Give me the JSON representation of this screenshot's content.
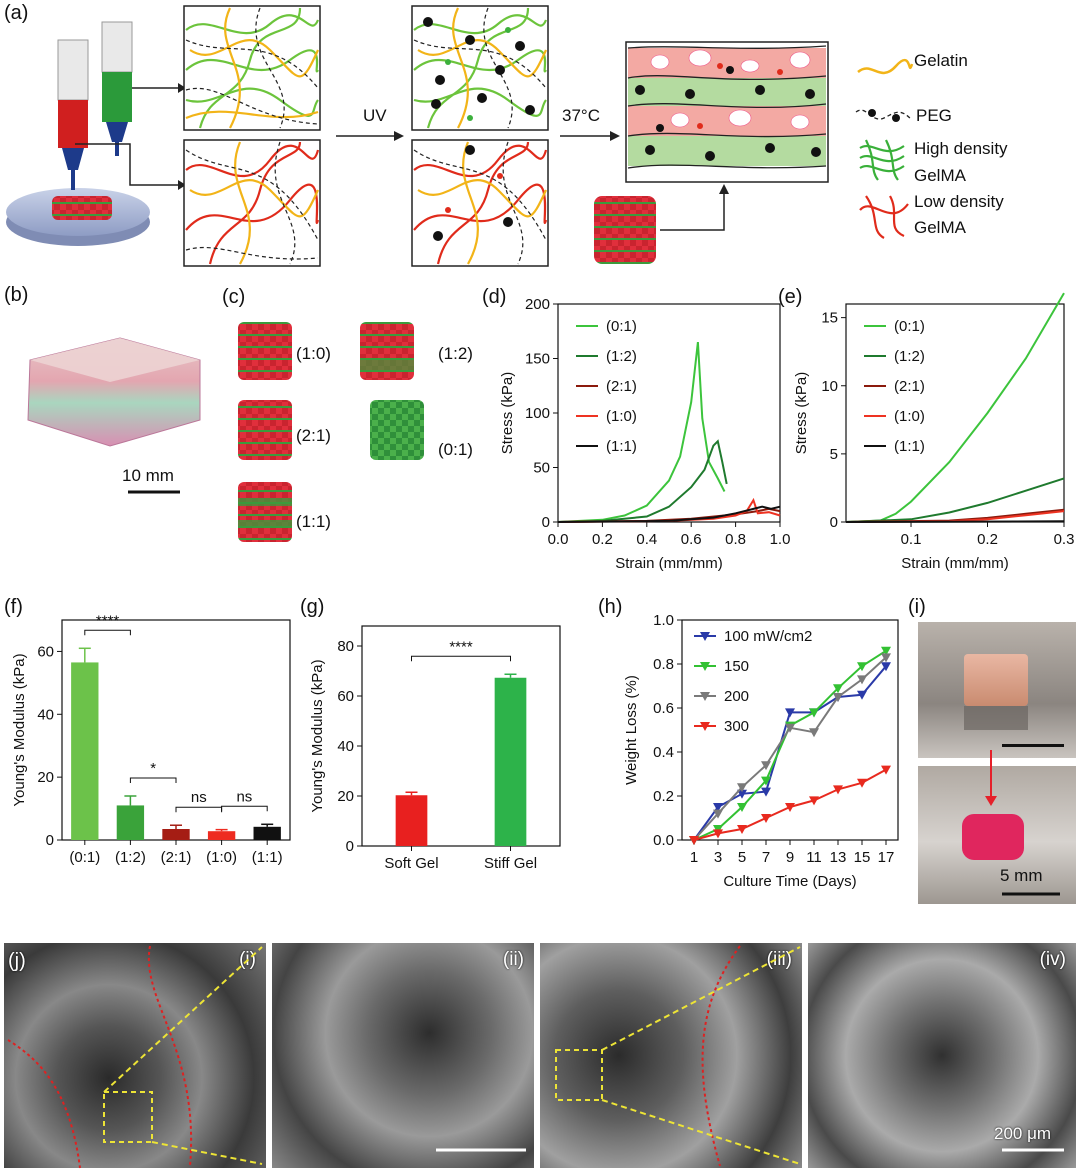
{
  "panels": {
    "a": "(a)",
    "b": "(b)",
    "c": "(c)",
    "d": "(d)",
    "e": "(e)",
    "f": "(f)",
    "g": "(g)",
    "h": "(h)",
    "i": "(i)",
    "j": "(j)"
  },
  "panel_a": {
    "step_uv": "UV",
    "step_temp": "37°C",
    "legend": {
      "gelatin": "Gelatin",
      "peg": "PEG",
      "high_1": "High density",
      "high_2": "GelMA",
      "low_1": "Low density",
      "low_2": "GelMA"
    },
    "colors": {
      "gelatin": "#f2b418",
      "high": "#3ab03a",
      "low": "#e02b1b",
      "peg": "#111111"
    }
  },
  "panel_b": {
    "scale": "10 mm"
  },
  "panel_c": {
    "labels": [
      "(1:0)",
      "(1:2)",
      "(2:1)",
      "(0:1)",
      "(1:1)"
    ]
  },
  "panel_i": {
    "scale": "5 mm"
  },
  "panel_j": {
    "tiles": [
      "(i)",
      "(ii)",
      "(iii)",
      "(iv)"
    ],
    "scale": "200 μm"
  },
  "chart_data": [
    {
      "id": "d",
      "type": "line",
      "xlabel": "Strain (mm/mm)",
      "ylabel": "Stress (kPa)",
      "xlim": [
        0,
        1.0
      ],
      "ylim": [
        0,
        200
      ],
      "xticks": [
        "0.0",
        "0.2",
        "0.4",
        "0.6",
        "0.8",
        "1.0"
      ],
      "yticks": [
        "0",
        "50",
        "100",
        "150",
        "200"
      ],
      "legend_position": "top-left",
      "series": [
        {
          "name": "(0:1)",
          "color": "#3cc43c",
          "points": [
            [
              0,
              0
            ],
            [
              0.2,
              2
            ],
            [
              0.3,
              6
            ],
            [
              0.4,
              15
            ],
            [
              0.5,
              38
            ],
            [
              0.55,
              60
            ],
            [
              0.6,
              110
            ],
            [
              0.63,
              165
            ],
            [
              0.65,
              95
            ],
            [
              0.68,
              55
            ],
            [
              0.72,
              40
            ],
            [
              0.75,
              28
            ]
          ]
        },
        {
          "name": "(1:2)",
          "color": "#1f7a2e",
          "points": [
            [
              0,
              0
            ],
            [
              0.2,
              1
            ],
            [
              0.4,
              5
            ],
            [
              0.5,
              14
            ],
            [
              0.6,
              32
            ],
            [
              0.66,
              48
            ],
            [
              0.7,
              70
            ],
            [
              0.72,
              74
            ],
            [
              0.74,
              55
            ],
            [
              0.76,
              35
            ]
          ]
        },
        {
          "name": "(2:1)",
          "color": "#8b1a0d",
          "points": [
            [
              0,
              0
            ],
            [
              0.4,
              1
            ],
            [
              0.6,
              3
            ],
            [
              0.8,
              7
            ],
            [
              0.9,
              10
            ],
            [
              0.95,
              12
            ],
            [
              1.0,
              10
            ]
          ]
        },
        {
          "name": "(1:0)",
          "color": "#ee3322",
          "points": [
            [
              0,
              0
            ],
            [
              0.5,
              1
            ],
            [
              0.7,
              3
            ],
            [
              0.8,
              6
            ],
            [
              0.85,
              10
            ],
            [
              0.88,
              20
            ],
            [
              0.9,
              8
            ],
            [
              0.95,
              9
            ],
            [
              1.0,
              6
            ]
          ]
        },
        {
          "name": "(1:1)",
          "color": "#111111",
          "points": [
            [
              0,
              0
            ],
            [
              0.5,
              1
            ],
            [
              0.7,
              4
            ],
            [
              0.8,
              8
            ],
            [
              0.88,
              12
            ],
            [
              0.92,
              14
            ],
            [
              0.96,
              12
            ],
            [
              1.0,
              14
            ]
          ]
        }
      ]
    },
    {
      "id": "e",
      "type": "line",
      "xlabel": "Strain (mm/mm)",
      "ylabel": "Stress (kPa)",
      "xlim": [
        0.015,
        0.3
      ],
      "ylim": [
        0,
        16
      ],
      "xticks": [
        "0.1",
        "0.2",
        "0.3"
      ],
      "xtick_values": [
        0.1,
        0.2,
        0.3
      ],
      "yticks": [
        "0",
        "5",
        "10",
        "15"
      ],
      "ytick_values": [
        0,
        5,
        10,
        15
      ],
      "legend_position": "top-left",
      "series": [
        {
          "name": "(0:1)",
          "color": "#3cc43c",
          "points": [
            [
              0.015,
              0
            ],
            [
              0.06,
              0.1
            ],
            [
              0.08,
              0.6
            ],
            [
              0.1,
              1.5
            ],
            [
              0.15,
              4.4
            ],
            [
              0.2,
              8
            ],
            [
              0.25,
              12
            ],
            [
              0.3,
              16.8
            ]
          ]
        },
        {
          "name": "(1:2)",
          "color": "#1f7a2e",
          "points": [
            [
              0.015,
              0
            ],
            [
              0.1,
              0.2
            ],
            [
              0.15,
              0.7
            ],
            [
              0.2,
              1.4
            ],
            [
              0.25,
              2.3
            ],
            [
              0.3,
              3.2
            ]
          ]
        },
        {
          "name": "(2:1)",
          "color": "#8b1a0d",
          "points": [
            [
              0.015,
              0
            ],
            [
              0.15,
              0.1
            ],
            [
              0.2,
              0.3
            ],
            [
              0.25,
              0.6
            ],
            [
              0.3,
              0.9
            ]
          ]
        },
        {
          "name": "(1:0)",
          "color": "#ee3322",
          "points": [
            [
              0.015,
              0
            ],
            [
              0.15,
              0.05
            ],
            [
              0.2,
              0.2
            ],
            [
              0.25,
              0.5
            ],
            [
              0.3,
              0.8
            ]
          ]
        },
        {
          "name": "(1:1)",
          "color": "#111111",
          "points": [
            [
              0.015,
              0
            ],
            [
              0.3,
              0.05
            ]
          ]
        }
      ]
    },
    {
      "id": "f",
      "type": "bar",
      "ylabel": "Young's Modulus (kPa)",
      "ylim": [
        0,
        70
      ],
      "yticks": [
        "0",
        "20",
        "40",
        "60"
      ],
      "categories": [
        "(0:1)",
        "(1:2)",
        "(2:1)",
        "(1:0)",
        "(1:1)"
      ],
      "values": [
        56.5,
        11,
        3.5,
        2.8,
        4.2
      ],
      "errors": [
        4.5,
        3,
        1.2,
        0.5,
        0.8
      ],
      "colors": [
        "#6cc24a",
        "#3aa33a",
        "#a51d14",
        "#ee2b20",
        "#111111"
      ],
      "significance": [
        {
          "from": 0,
          "to": 1,
          "label": "****"
        },
        {
          "from": 1,
          "to": 2,
          "label": "*"
        },
        {
          "from": 2,
          "to": 3,
          "label": "ns"
        },
        {
          "from": 3,
          "to": 4,
          "label": "ns"
        }
      ]
    },
    {
      "id": "g",
      "type": "bar",
      "ylabel": "Young's Modulus (kPa)",
      "ylim": [
        0,
        88
      ],
      "yticks": [
        "0",
        "20",
        "40",
        "60",
        "80"
      ],
      "categories": [
        "Soft Gel",
        "Stiff Gel"
      ],
      "values": [
        20.3,
        67.3
      ],
      "errors": [
        1.2,
        1.4
      ],
      "colors": [
        "#e8201f",
        "#2db34a"
      ],
      "significance": [
        {
          "from": 0,
          "to": 1,
          "label": "****"
        }
      ]
    },
    {
      "id": "h",
      "type": "line",
      "xlabel": "Culture Time (Days)",
      "ylabel": "Weight Loss (%)",
      "xlim": [
        0,
        18
      ],
      "ylim": [
        0,
        1.0
      ],
      "xticks": [
        "1",
        "3",
        "5",
        "7",
        "9",
        "11",
        "13",
        "15",
        "17"
      ],
      "yticks": [
        "0.0",
        "0.2",
        "0.4",
        "0.6",
        "0.8",
        "1.0"
      ],
      "legend_position": "top-left",
      "series": [
        {
          "name": "100 mW/cm2",
          "color": "#2a3aa8",
          "marker": "down-triangle",
          "x": [
            1,
            3,
            5,
            7,
            9,
            11,
            13,
            15,
            17
          ],
          "y": [
            0,
            0.15,
            0.21,
            0.22,
            0.58,
            0.58,
            0.65,
            0.66,
            0.79
          ]
        },
        {
          "name": "150",
          "color": "#33c133",
          "marker": "down-triangle",
          "x": [
            1,
            3,
            5,
            7,
            9,
            11,
            13,
            15,
            17
          ],
          "y": [
            0,
            0.05,
            0.15,
            0.27,
            0.52,
            0.58,
            0.69,
            0.79,
            0.86
          ]
        },
        {
          "name": "200",
          "color": "#7a7a7a",
          "marker": "down-triangle",
          "x": [
            1,
            3,
            5,
            7,
            9,
            11,
            13,
            15,
            17
          ],
          "y": [
            0,
            0.12,
            0.24,
            0.34,
            0.51,
            0.49,
            0.65,
            0.73,
            0.83
          ]
        },
        {
          "name": "300",
          "color": "#e82a1f",
          "marker": "down-triangle",
          "x": [
            1,
            3,
            5,
            7,
            9,
            11,
            13,
            15,
            17
          ],
          "y": [
            0,
            0.03,
            0.05,
            0.1,
            0.15,
            0.18,
            0.23,
            0.26,
            0.32
          ]
        }
      ]
    }
  ]
}
